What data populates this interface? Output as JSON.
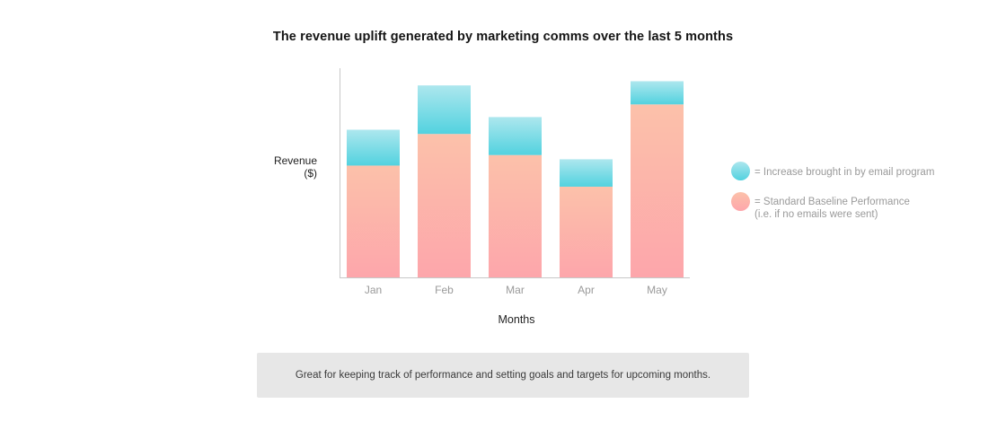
{
  "chart_data": {
    "type": "bar",
    "stacked": true,
    "title": "The revenue uplift generated by marketing comms over the last 5 months",
    "xlabel": "Months",
    "ylabel_lines": [
      "Revenue",
      "($)"
    ],
    "categories": [
      "Jan",
      "Feb",
      "Mar",
      "Apr",
      "May"
    ],
    "series": [
      {
        "name": "Standard Baseline Performance",
        "values": [
          53,
          68,
          58,
          43,
          82
        ]
      },
      {
        "name": "Increase brought in by email program",
        "values": [
          17,
          23,
          18,
          13,
          11
        ]
      }
    ],
    "ylim": [
      0,
      100
    ],
    "grid": false,
    "legend_position": "right",
    "colors": {
      "baseline_top": "#fcc1aa",
      "baseline_bottom": "#fda6ab",
      "increase_top": "#ade7ee",
      "increase_bottom": "#52d2df",
      "axis": "#c8c8c8",
      "tick_label": "#9a9a9a"
    }
  },
  "legend": {
    "increase_label": "= Increase brought in by email program",
    "baseline_line1": "= Standard Baseline Performance",
    "baseline_line2": "(i.e. if no emails were sent)",
    "increase_color": "#52d2df",
    "baseline_color": "#fdb9a9"
  },
  "note": {
    "text": "Great for keeping track of performance and setting goals and targets for upcoming months."
  }
}
